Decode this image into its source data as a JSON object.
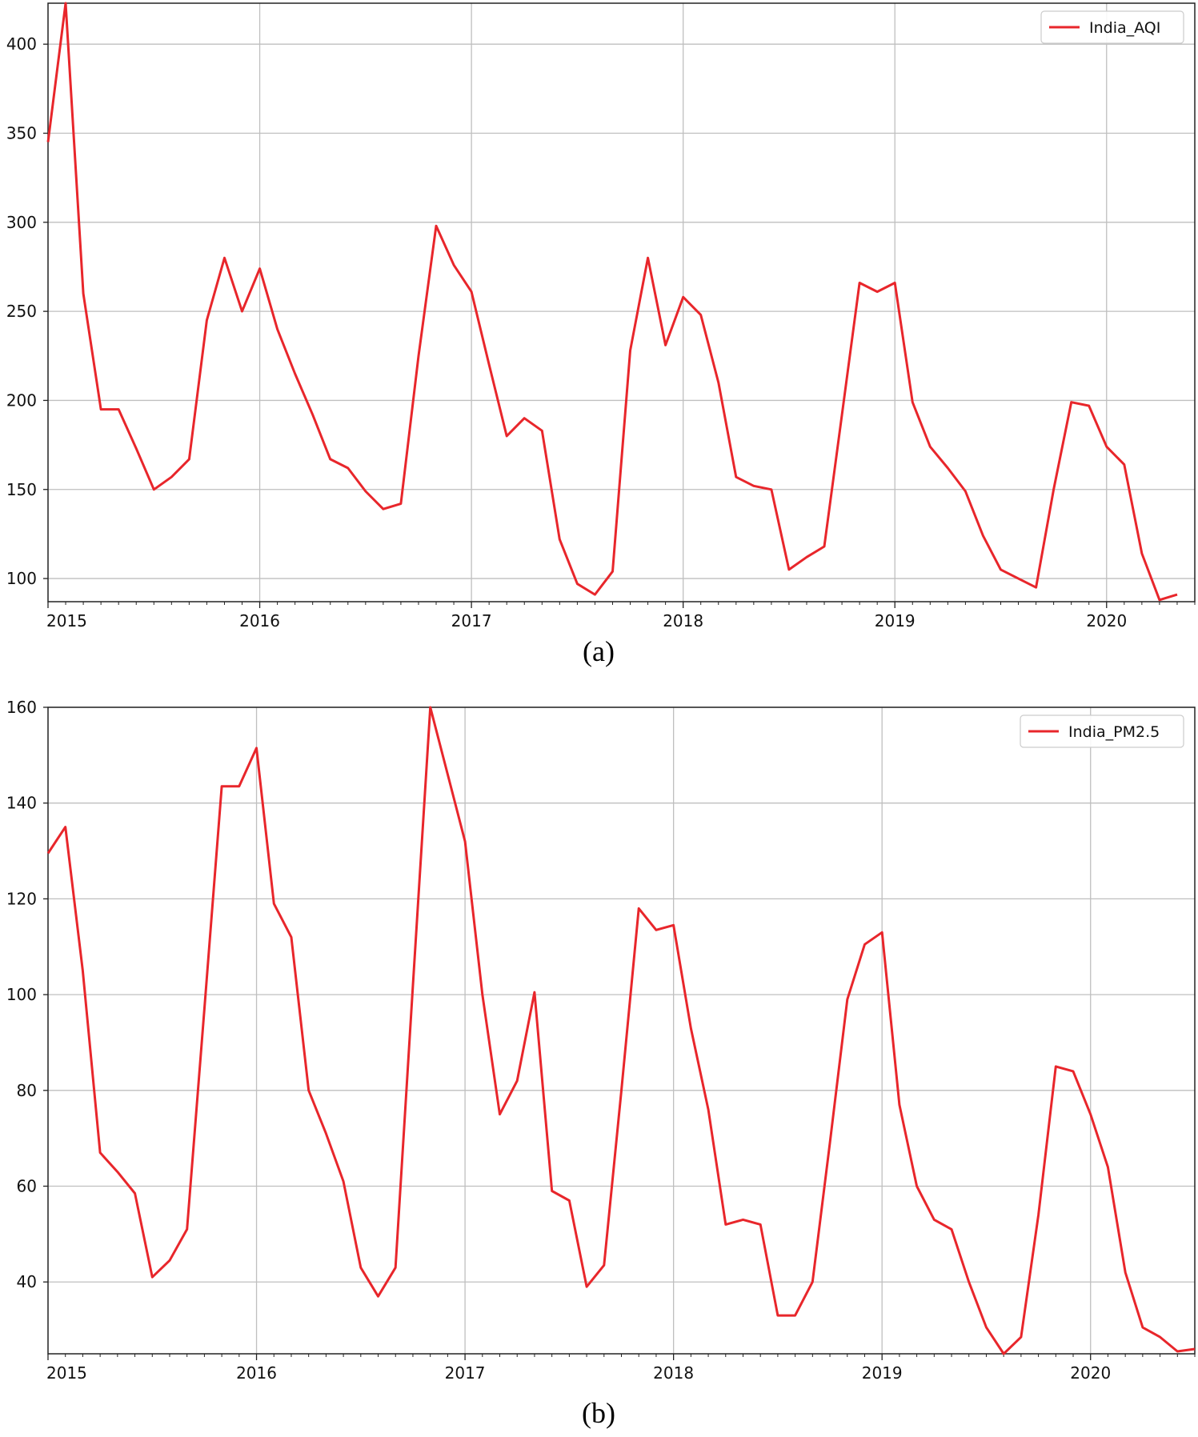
{
  "chart_data": [
    {
      "type": "line",
      "caption": "(a)",
      "xlabel": "",
      "ylabel": "",
      "x_ticks": [
        "2015",
        "2016",
        "2017",
        "2018",
        "2019",
        "2020"
      ],
      "y_ticks": [
        100,
        150,
        200,
        250,
        300,
        350,
        400
      ],
      "xlim": [
        "2015-01",
        "2020-06"
      ],
      "ylim": [
        87,
        423
      ],
      "grid": true,
      "legend": "top-right",
      "color": "#e8262b",
      "series": [
        {
          "name": "India_AQI",
          "x": [
            "2015-01",
            "2015-02",
            "2015-03",
            "2015-04",
            "2015-05",
            "2015-06",
            "2015-07",
            "2015-08",
            "2015-09",
            "2015-10",
            "2015-11",
            "2015-12",
            "2016-01",
            "2016-02",
            "2016-03",
            "2016-04",
            "2016-05",
            "2016-06",
            "2016-07",
            "2016-08",
            "2016-09",
            "2016-10",
            "2016-11",
            "2016-12",
            "2017-01",
            "2017-02",
            "2017-03",
            "2017-04",
            "2017-05",
            "2017-06",
            "2017-07",
            "2017-08",
            "2017-09",
            "2017-10",
            "2017-11",
            "2017-12",
            "2018-01",
            "2018-02",
            "2018-03",
            "2018-04",
            "2018-05",
            "2018-06",
            "2018-07",
            "2018-08",
            "2018-09",
            "2018-10",
            "2018-11",
            "2018-12",
            "2019-01",
            "2019-02",
            "2019-03",
            "2019-04",
            "2019-05",
            "2019-06",
            "2019-07",
            "2019-08",
            "2019-09",
            "2019-10",
            "2019-11",
            "2019-12",
            "2020-01",
            "2020-02",
            "2020-03",
            "2020-04",
            "2020-05"
          ],
          "values": [
            345,
            423,
            260,
            195,
            195,
            173,
            150,
            157,
            167,
            245,
            280,
            250,
            274,
            240,
            215,
            192,
            167,
            162,
            149,
            139,
            142,
            225,
            298,
            276,
            261,
            220,
            180,
            190,
            183,
            122,
            97,
            91,
            104,
            228,
            280,
            231,
            258,
            248,
            210,
            157,
            152,
            150,
            105,
            112,
            118,
            192,
            266,
            261,
            266,
            199,
            174,
            162,
            149,
            124,
            105,
            100,
            95,
            150,
            199,
            197,
            174,
            164,
            114,
            88,
            91
          ]
        }
      ]
    },
    {
      "type": "line",
      "caption": "(b)",
      "xlabel": "",
      "ylabel": "",
      "x_ticks": [
        "2015",
        "2016",
        "2017",
        "2018",
        "2019",
        "2020"
      ],
      "y_ticks": [
        40,
        60,
        80,
        100,
        120,
        140,
        160
      ],
      "xlim": [
        "2015-01",
        "2020-07"
      ],
      "ylim": [
        25,
        160
      ],
      "grid": true,
      "legend": "top-right",
      "color": "#e8262b",
      "series": [
        {
          "name": "India_PM2.5",
          "x": [
            "2015-01",
            "2015-02",
            "2015-03",
            "2015-04",
            "2015-05",
            "2015-06",
            "2015-07",
            "2015-08",
            "2015-09",
            "2015-10",
            "2015-11",
            "2015-12",
            "2016-01",
            "2016-02",
            "2016-03",
            "2016-04",
            "2016-05",
            "2016-06",
            "2016-07",
            "2016-08",
            "2016-09",
            "2016-10",
            "2016-11",
            "2016-12",
            "2017-01",
            "2017-02",
            "2017-03",
            "2017-04",
            "2017-05",
            "2017-06",
            "2017-07",
            "2017-08",
            "2017-09",
            "2017-10",
            "2017-11",
            "2017-12",
            "2018-01",
            "2018-02",
            "2018-03",
            "2018-04",
            "2018-05",
            "2018-06",
            "2018-07",
            "2018-08",
            "2018-09",
            "2018-10",
            "2018-11",
            "2018-12",
            "2019-01",
            "2019-02",
            "2019-03",
            "2019-04",
            "2019-05",
            "2019-06",
            "2019-07",
            "2019-08",
            "2019-09",
            "2019-10",
            "2019-11",
            "2019-12",
            "2020-01",
            "2020-02",
            "2020-03",
            "2020-04",
            "2020-05",
            "2020-06",
            "2020-07"
          ],
          "values": [
            129.5,
            135,
            105,
            67,
            63,
            58.5,
            41,
            44.5,
            51,
            97,
            143.5,
            143.5,
            151.5,
            119,
            112,
            80,
            71,
            61,
            43,
            37,
            43,
            102,
            160,
            146,
            132,
            100,
            75,
            82,
            100.5,
            59,
            57,
            39,
            43.5,
            80,
            118,
            113.5,
            114.5,
            93,
            76,
            52,
            53,
            52,
            33,
            33,
            40,
            69,
            99,
            110.5,
            113,
            77,
            60,
            53,
            51,
            40,
            30.5,
            25,
            28.5,
            54,
            85,
            84,
            75,
            64,
            42,
            30.5,
            28.5,
            25.5,
            26
          ]
        }
      ]
    }
  ]
}
